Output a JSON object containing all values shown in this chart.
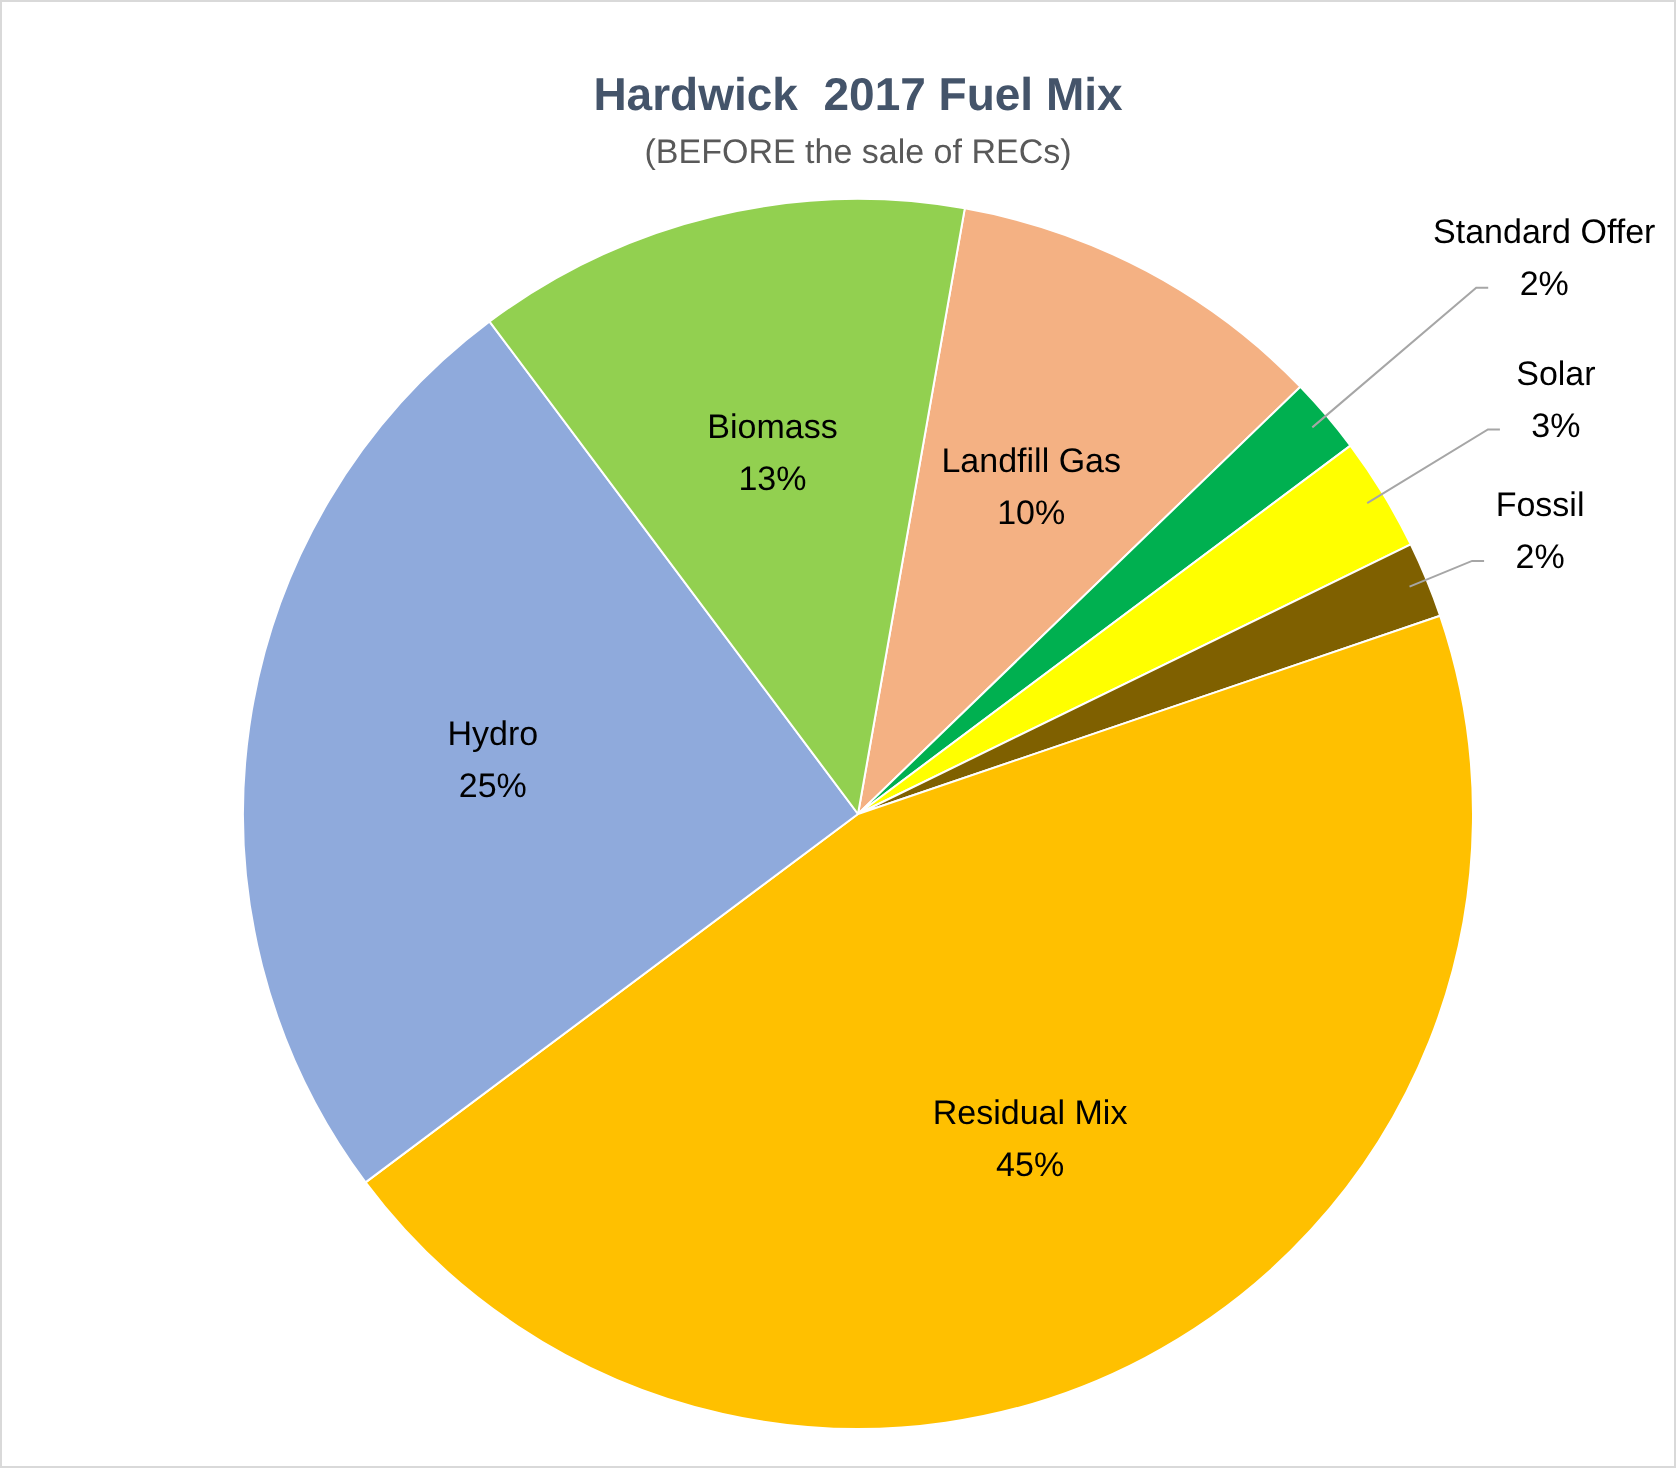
{
  "chart_data": {
    "type": "pie",
    "title": "Hardwick  2017 Fuel Mix",
    "subtitle": "(BEFORE the sale of RECs)",
    "categories": [
      "Landfill Gas",
      "Standard Offer",
      "Solar",
      "Fossil",
      "Residual Mix",
      "Hydro",
      "Biomass"
    ],
    "values": [
      10,
      2,
      3,
      2,
      45,
      25,
      13
    ],
    "value_labels": [
      "10%",
      "2%",
      "3%",
      "2%",
      "45%",
      "25%",
      "13%"
    ],
    "colors": [
      "#f4b183",
      "#00b050",
      "#ffff00",
      "#7f6000",
      "#ffc000",
      "#8faadc",
      "#92d050"
    ],
    "legend": false
  }
}
